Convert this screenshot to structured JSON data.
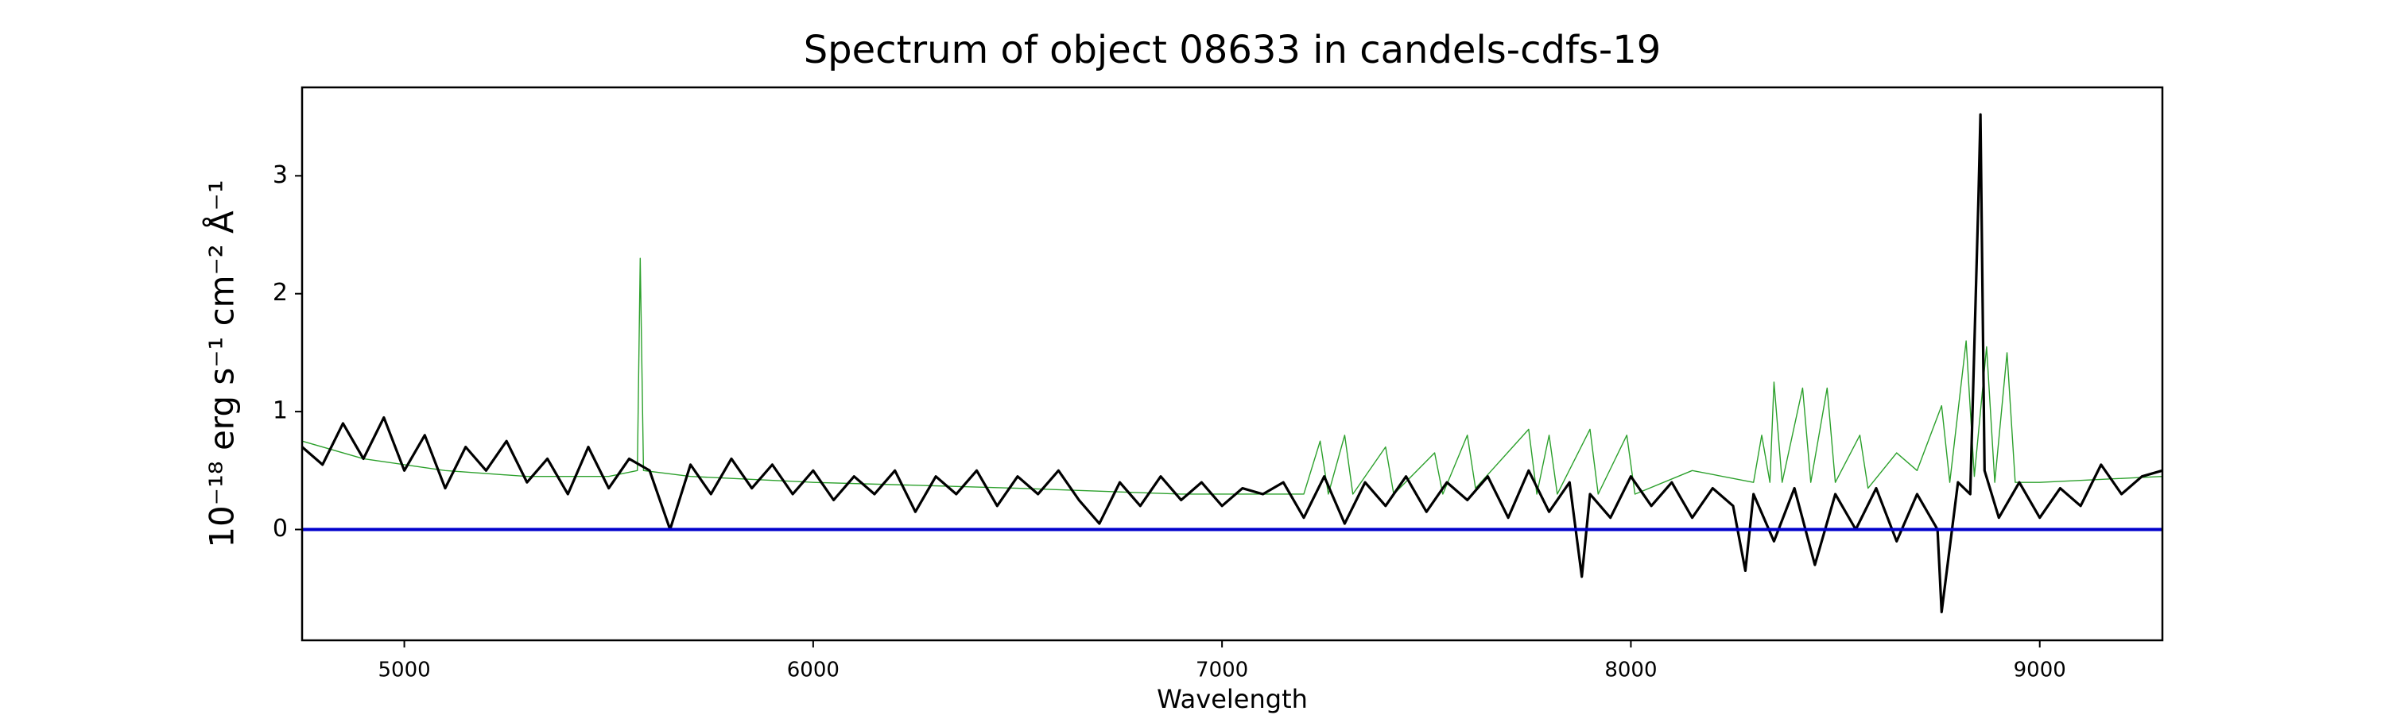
{
  "chart_data": {
    "type": "line",
    "title": "Spectrum of object 08633 in candels-cdfs-19",
    "xlabel": "Wavelength",
    "ylabel": "10⁻¹⁸ erg s⁻¹ cm⁻² Å⁻¹",
    "xlim": [
      4750,
      9300
    ],
    "ylim": [
      -0.94,
      3.75
    ],
    "xticks": [
      5000,
      6000,
      7000,
      8000,
      9000
    ],
    "yticks": [
      0,
      1,
      2,
      3
    ],
    "grid": false,
    "series": [
      {
        "color": "#2ca02c",
        "width": 1.4,
        "x": [
          4750,
          4900,
          5100,
          5300,
          5500,
          5570,
          5577,
          5585,
          5700,
          6000,
          6500,
          6900,
          7200,
          7240,
          7260,
          7300,
          7320,
          7400,
          7420,
          7520,
          7540,
          7600,
          7620,
          7750,
          7770,
          7800,
          7820,
          7900,
          7920,
          7990,
          8010,
          8150,
          8300,
          8320,
          8340,
          8350,
          8370,
          8420,
          8440,
          8480,
          8500,
          8560,
          8580,
          8650,
          8700,
          8760,
          8780,
          8820,
          8840,
          8870,
          8890,
          8920,
          8940,
          9000,
          9300
        ],
        "values": [
          0.75,
          0.6,
          0.5,
          0.45,
          0.45,
          0.5,
          2.3,
          0.5,
          0.45,
          0.4,
          0.35,
          0.3,
          0.3,
          0.75,
          0.3,
          0.8,
          0.3,
          0.7,
          0.3,
          0.65,
          0.3,
          0.8,
          0.35,
          0.85,
          0.3,
          0.8,
          0.3,
          0.85,
          0.3,
          0.8,
          0.3,
          0.5,
          0.4,
          0.8,
          0.4,
          1.25,
          0.4,
          1.2,
          0.4,
          1.2,
          0.4,
          0.8,
          0.35,
          0.65,
          0.5,
          1.05,
          0.4,
          1.6,
          0.45,
          1.55,
          0.4,
          1.5,
          0.4,
          0.4,
          0.45
        ]
      },
      {
        "color": "#000000",
        "width": 3.2,
        "x": [
          4750,
          4800,
          4850,
          4900,
          4950,
          5000,
          5050,
          5100,
          5150,
          5200,
          5250,
          5300,
          5350,
          5400,
          5450,
          5500,
          5550,
          5600,
          5650,
          5700,
          5750,
          5800,
          5850,
          5900,
          5950,
          6000,
          6050,
          6100,
          6150,
          6200,
          6250,
          6300,
          6350,
          6400,
          6450,
          6500,
          6550,
          6600,
          6650,
          6700,
          6750,
          6800,
          6850,
          6900,
          6950,
          7000,
          7050,
          7100,
          7150,
          7200,
          7250,
          7300,
          7350,
          7400,
          7450,
          7500,
          7550,
          7600,
          7650,
          7700,
          7750,
          7800,
          7850,
          7880,
          7900,
          7950,
          8000,
          8050,
          8100,
          8150,
          8200,
          8250,
          8280,
          8300,
          8350,
          8400,
          8450,
          8500,
          8550,
          8600,
          8650,
          8700,
          8750,
          8760,
          8800,
          8830,
          8850,
          8855,
          8865,
          8900,
          8950,
          9000,
          9050,
          9100,
          9150,
          9200,
          9250,
          9300
        ],
        "values": [
          0.7,
          0.55,
          0.9,
          0.6,
          0.95,
          0.5,
          0.8,
          0.35,
          0.7,
          0.5,
          0.75,
          0.4,
          0.6,
          0.3,
          0.7,
          0.35,
          0.6,
          0.5,
          0.0,
          0.55,
          0.3,
          0.6,
          0.35,
          0.55,
          0.3,
          0.5,
          0.25,
          0.45,
          0.3,
          0.5,
          0.15,
          0.45,
          0.3,
          0.5,
          0.2,
          0.45,
          0.3,
          0.5,
          0.25,
          0.05,
          0.4,
          0.2,
          0.45,
          0.25,
          0.4,
          0.2,
          0.35,
          0.3,
          0.4,
          0.1,
          0.45,
          0.05,
          0.4,
          0.2,
          0.45,
          0.15,
          0.4,
          0.25,
          0.45,
          0.1,
          0.5,
          0.15,
          0.4,
          -0.4,
          0.3,
          0.1,
          0.45,
          0.2,
          0.4,
          0.1,
          0.35,
          0.2,
          -0.35,
          0.3,
          -0.1,
          0.35,
          -0.3,
          0.3,
          0.0,
          0.35,
          -0.1,
          0.3,
          0.0,
          -0.7,
          0.4,
          0.3,
          2.8,
          3.52,
          0.5,
          0.1,
          0.4,
          0.1,
          0.35,
          0.2,
          0.55,
          0.3,
          0.45,
          0.5
        ]
      },
      {
        "color": "#0000cc",
        "width": 4,
        "x": [
          4750,
          9300
        ],
        "values": [
          0,
          0
        ]
      }
    ]
  }
}
